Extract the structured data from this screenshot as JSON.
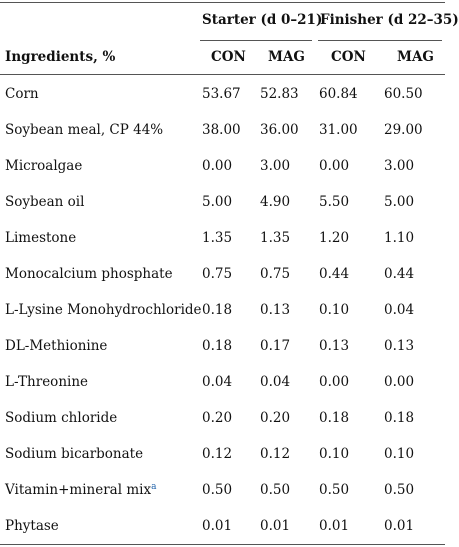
{
  "header": {
    "groups": [
      "Starter (d 0–21)",
      "Finisher (d 22–35)"
    ],
    "ingredients_label": "Ingredients, %",
    "columns": [
      "CON",
      "MAG",
      "CON",
      "MAG"
    ]
  },
  "rows": [
    {
      "name": "Corn",
      "sup": "",
      "values": [
        "53.67",
        "52.83",
        "60.84",
        "60.50"
      ]
    },
    {
      "name": "Soybean meal, CP 44%",
      "sup": "",
      "values": [
        "38.00",
        "36.00",
        "31.00",
        "29.00"
      ]
    },
    {
      "name": "Microalgae",
      "sup": "",
      "values": [
        "0.00",
        "3.00",
        "0.00",
        "3.00"
      ]
    },
    {
      "name": "Soybean oil",
      "sup": "",
      "values": [
        "5.00",
        "4.90",
        "5.50",
        "5.00"
      ]
    },
    {
      "name": "Limestone",
      "sup": "",
      "values": [
        "1.35",
        "1.35",
        "1.20",
        "1.10"
      ]
    },
    {
      "name": "Monocalcium phosphate",
      "sup": "",
      "values": [
        "0.75",
        "0.75",
        "0.44",
        "0.44"
      ]
    },
    {
      "name": "L-Lysine Monohydrochloride",
      "sup": "",
      "values": [
        "0.18",
        "0.13",
        "0.10",
        "0.04"
      ]
    },
    {
      "name": "DL-Methionine",
      "sup": "",
      "values": [
        "0.18",
        "0.17",
        "0.13",
        "0.13"
      ]
    },
    {
      "name": "L-Threonine",
      "sup": "",
      "values": [
        "0.04",
        "0.04",
        "0.00",
        "0.00"
      ]
    },
    {
      "name": "Sodium chloride",
      "sup": "",
      "values": [
        "0.20",
        "0.20",
        "0.18",
        "0.18"
      ]
    },
    {
      "name": "Sodium bicarbonate",
      "sup": "",
      "values": [
        "0.12",
        "0.12",
        "0.10",
        "0.10"
      ]
    },
    {
      "name": "Vitamin+mineral mix",
      "sup": "a",
      "values": [
        "0.50",
        "0.50",
        "0.50",
        "0.50"
      ]
    },
    {
      "name": "Phytase",
      "sup": "",
      "values": [
        "0.01",
        "0.01",
        "0.01",
        "0.01"
      ]
    }
  ]
}
